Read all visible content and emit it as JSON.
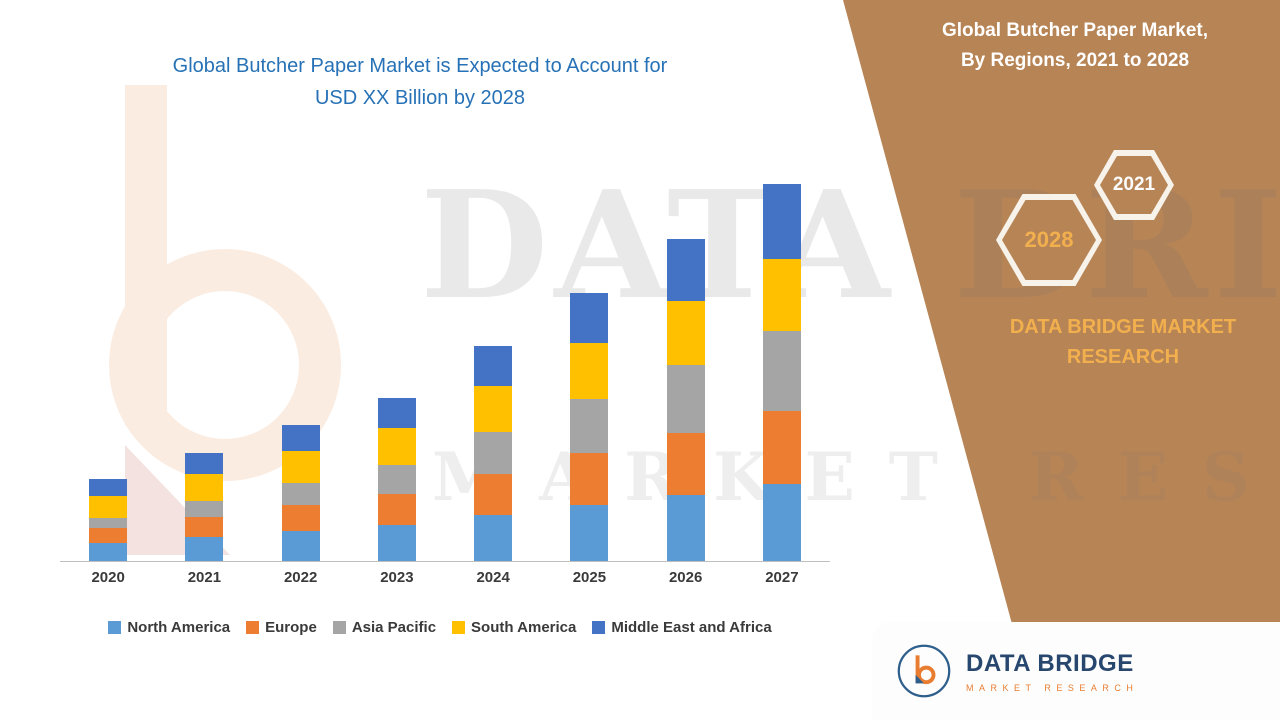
{
  "title": {
    "line1": "Global Butcher Paper Market is Expected to Account for",
    "line2": "USD XX Billion by 2028"
  },
  "right_panel": {
    "header_line1": "Global Butcher Paper Market,",
    "header_line2": "By Regions, 2021 to 2028",
    "hex_back_label": "2028",
    "hex_front_label": "2021",
    "brand_line1": "DATA BRIDGE MARKET",
    "brand_line2": "RESEARCH",
    "panel_color": "#B78455",
    "accent_gold": "#F2AF4E"
  },
  "watermark": {
    "line1": "DATA BRIDGE",
    "line2": "MARKET RESEARCH"
  },
  "logo_box": {
    "name": "DATA BRIDGE",
    "subtitle": "MARKET RESEARCH"
  },
  "chart_data": {
    "type": "bar",
    "stacked": true,
    "title": "Global Butcher Paper Market is Expected to Account for USD XX Billion by 2028",
    "xlabel": "",
    "ylabel": "",
    "value_axis_visible": false,
    "gridlines": false,
    "legend_position": "bottom",
    "note": "No value axis or data labels shown in source; segment values are estimated relative units read from bar heights.",
    "categories": [
      "2020",
      "2021",
      "2022",
      "2023",
      "2024",
      "2025",
      "2026",
      "2027"
    ],
    "series": [
      {
        "name": "North America",
        "color": "#5B9BD5",
        "values": [
          1.8,
          2.4,
          3.0,
          3.6,
          4.6,
          5.6,
          6.6,
          7.7
        ]
      },
      {
        "name": "Europe",
        "color": "#ED7D31",
        "values": [
          1.5,
          2.0,
          2.6,
          3.1,
          4.1,
          5.2,
          6.2,
          7.3
        ]
      },
      {
        "name": "Asia Pacific",
        "color": "#A5A5A5",
        "values": [
          1.0,
          1.6,
          2.2,
          2.9,
          4.2,
          5.4,
          6.8,
          8.0
        ]
      },
      {
        "name": "South America",
        "color": "#FFC000",
        "values": [
          2.2,
          2.7,
          3.2,
          3.7,
          4.6,
          5.6,
          6.4,
          7.2
        ]
      },
      {
        "name": "Middle East and Africa",
        "color": "#4472C4",
        "values": [
          1.7,
          2.1,
          2.6,
          3.0,
          4.0,
          5.0,
          6.2,
          7.5
        ]
      }
    ]
  }
}
